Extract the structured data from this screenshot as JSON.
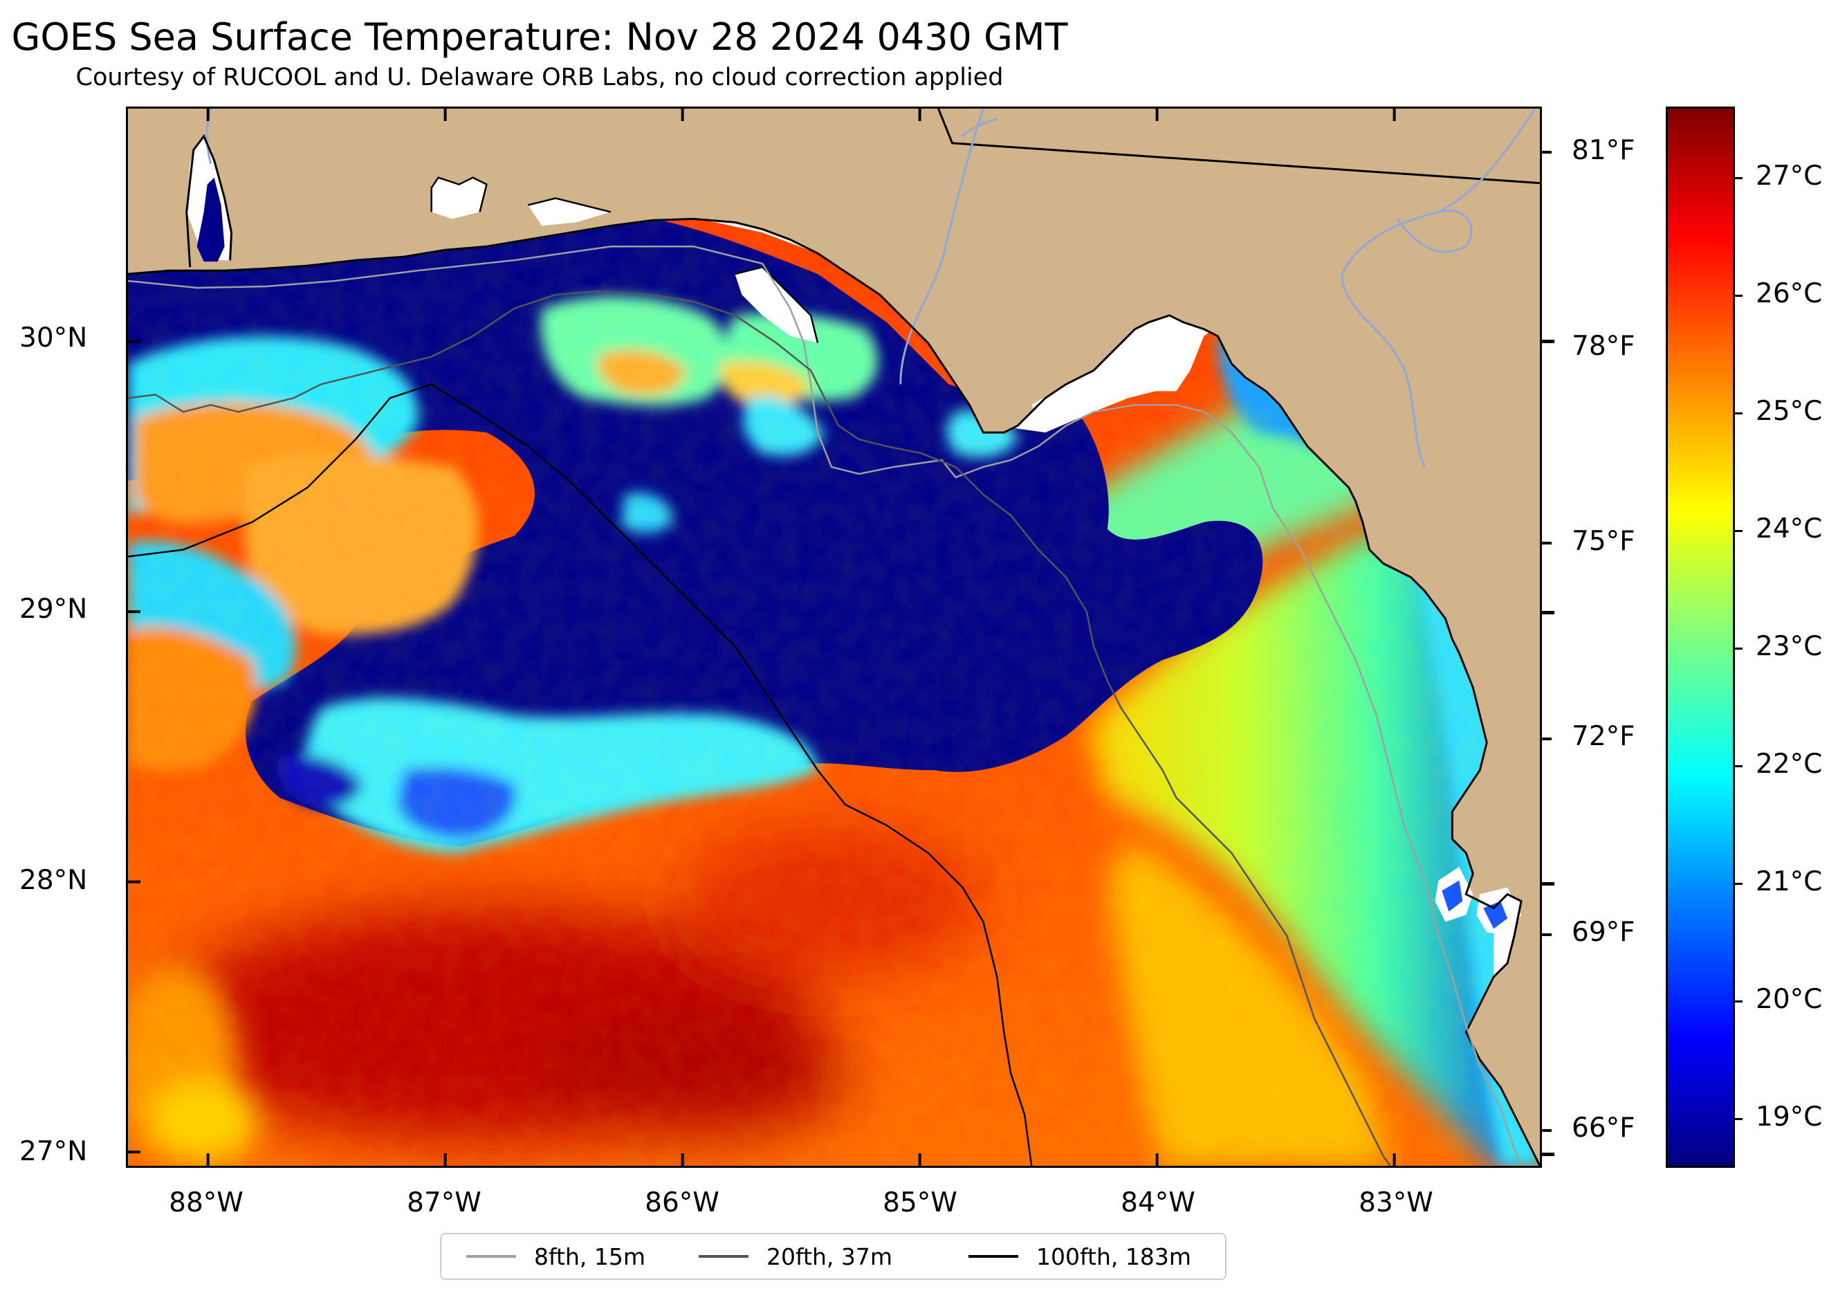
{
  "title": "GOES Sea Surface Temperature: Nov 28 2024 0430 GMT",
  "subtitle": "Courtesy of RUCOOL and U. Delaware ORB Labs, no cloud correction applied",
  "axes": {
    "longitude_labels": [
      "88°W",
      "87°W",
      "86°W",
      "85°W",
      "84°W",
      "83°W"
    ],
    "latitude_labels": [
      "30°N",
      "29°N",
      "28°N",
      "27°N"
    ],
    "fahrenheit_labels": [
      "81°F",
      "78°F",
      "75°F",
      "72°F",
      "69°F",
      "66°F"
    ]
  },
  "colorbar": {
    "labels": [
      "27°C",
      "26°C",
      "25°C",
      "24°C",
      "23°C",
      "22°C",
      "21°C",
      "20°C",
      "19°C"
    ],
    "colormap": "jet",
    "range_c": [
      18.6,
      27.6
    ]
  },
  "legend": {
    "items": [
      {
        "label": "8fth, 15m",
        "color": "#a0a0a0"
      },
      {
        "label": "20fth, 37m",
        "color": "#555555"
      },
      {
        "label": "100fth, 183m",
        "color": "#000000"
      }
    ]
  },
  "colors": {
    "land": "#d2b48c",
    "no_data": "#ffffff",
    "river": "#8fa8d8"
  }
}
